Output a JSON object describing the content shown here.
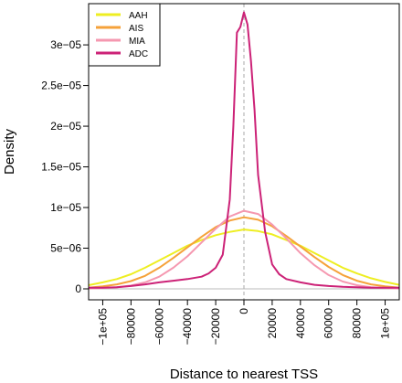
{
  "chart_data": {
    "type": "line",
    "xlabel": "Distance to nearest TSS",
    "ylabel": "Density",
    "xlim": [
      -110000,
      110000
    ],
    "ylim": [
      0,
      3.5e-05
    ],
    "x_ticks": [
      -100000,
      -80000,
      -60000,
      -40000,
      -20000,
      0,
      20000,
      40000,
      60000,
      80000,
      100000
    ],
    "x_tick_labels": [
      "−1e+05",
      "−80000",
      "−60000",
      "−40000",
      "−20000",
      "0",
      "20000",
      "40000",
      "60000",
      "80000",
      "1e+05"
    ],
    "y_ticks": [
      0,
      5e-06,
      1e-05,
      1.5e-05,
      2e-05,
      2.5e-05,
      3e-05
    ],
    "y_tick_labels": [
      "0",
      "5e−06",
      "1e−05",
      "1.5e−05",
      "2e−05",
      "2.5e−05",
      "3e−05"
    ],
    "reference_line": {
      "x": 0,
      "style": "dashed",
      "color": "#aaaaaa"
    },
    "baseline": {
      "y": 0,
      "color": "#bbbbbb"
    },
    "legend_position": "top-left",
    "series": [
      {
        "name": "AAH",
        "color": "#eeee22",
        "x": [
          -110000,
          -100000,
          -90000,
          -80000,
          -70000,
          -60000,
          -50000,
          -40000,
          -30000,
          -20000,
          -10000,
          0,
          10000,
          20000,
          30000,
          40000,
          50000,
          60000,
          70000,
          80000,
          90000,
          100000,
          110000
        ],
        "y": [
          4.5e-07,
          8e-07,
          1.2e-06,
          1.8e-06,
          2.6e-06,
          3.5e-06,
          4.4e-06,
          5.3e-06,
          6e-06,
          6.6e-06,
          7e-06,
          7.3e-06,
          7.1e-06,
          6.7e-06,
          6e-06,
          5.3e-06,
          4.4e-06,
          3.5e-06,
          2.6e-06,
          1.9e-06,
          1.3e-06,
          8.5e-07,
          5e-07
        ]
      },
      {
        "name": "AIS",
        "color": "#f5a23a",
        "x": [
          -110000,
          -100000,
          -90000,
          -80000,
          -70000,
          -60000,
          -50000,
          -40000,
          -30000,
          -20000,
          -10000,
          0,
          10000,
          20000,
          30000,
          40000,
          50000,
          60000,
          70000,
          80000,
          90000,
          100000,
          110000
        ],
        "y": [
          1.5e-07,
          3e-07,
          5.5e-07,
          9.5e-07,
          1.6e-06,
          2.6e-06,
          3.8e-06,
          5.1e-06,
          6.4e-06,
          7.6e-06,
          8.4e-06,
          8.8e-06,
          8.5e-06,
          7.7e-06,
          6.5e-06,
          5.2e-06,
          3.9e-06,
          2.7e-06,
          1.7e-06,
          1e-06,
          5.5e-07,
          3e-07,
          1.5e-07
        ]
      },
      {
        "name": "MIA",
        "color": "#f598b0",
        "x": [
          -110000,
          -100000,
          -90000,
          -80000,
          -70000,
          -60000,
          -50000,
          -40000,
          -30000,
          -20000,
          -10000,
          0,
          10000,
          20000,
          30000,
          40000,
          50000,
          60000,
          70000,
          80000,
          90000,
          100000,
          110000
        ],
        "y": [
          5e-08,
          1e-07,
          2e-07,
          4e-07,
          8e-07,
          1.5e-06,
          2.6e-06,
          4e-06,
          5.7e-06,
          7.4e-06,
          8.9e-06,
          9.6e-06,
          9.2e-06,
          7.9e-06,
          6.2e-06,
          4.4e-06,
          2.9e-06,
          1.7e-06,
          9e-07,
          4.5e-07,
          2e-07,
          1e-07,
          5e-08
        ]
      },
      {
        "name": "ADC",
        "color": "#cc2277",
        "x": [
          -110000,
          -100000,
          -90000,
          -80000,
          -70000,
          -60000,
          -50000,
          -40000,
          -30000,
          -25000,
          -20000,
          -15000,
          -10000,
          -7500,
          -5000,
          -2500,
          0,
          2500,
          5000,
          7500,
          10000,
          15000,
          20000,
          25000,
          30000,
          40000,
          50000,
          60000,
          70000,
          80000,
          90000,
          100000,
          110000
        ],
        "y": [
          1.5e-07,
          1.5e-07,
          2e-07,
          3.5e-07,
          5.5e-07,
          8e-07,
          1e-06,
          1.2e-06,
          1.5e-06,
          1.9e-06,
          2.6e-06,
          4.2e-06,
          1.1e-05,
          2e-05,
          3.15e-05,
          3.22e-05,
          3.4e-05,
          3.25e-05,
          2.8e-05,
          2.2e-05,
          1.4e-05,
          7e-06,
          3e-06,
          1.8e-06,
          1.2e-06,
          8e-07,
          5e-07,
          3.5e-07,
          2.5e-07,
          2e-07,
          1.5e-07,
          1.5e-07,
          1.5e-07
        ]
      }
    ]
  }
}
